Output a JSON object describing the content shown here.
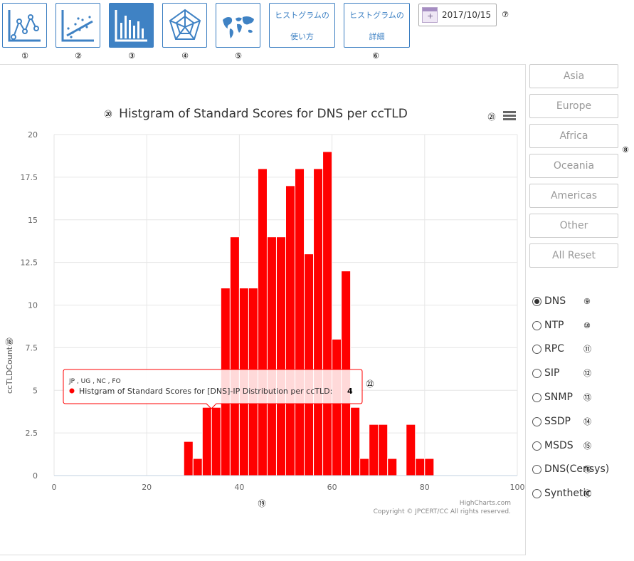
{
  "toolbar": {
    "icons": [
      "line-chart-icon",
      "scatter-chart-icon",
      "histogram-icon",
      "radar-chart-icon",
      "world-map-icon"
    ],
    "active_index": 2,
    "howto_btn": {
      "line1": "ヒストグラムの",
      "line2": "使い方"
    },
    "detail_btn": {
      "line1": "ヒストグラムの",
      "line2": "詳細"
    },
    "date": "2017/10/15",
    "labels": {
      "n1": "①",
      "n2": "②",
      "n3": "③",
      "n4": "④",
      "n5": "⑤",
      "n6": "⑥",
      "n7": "⑦"
    }
  },
  "regions": {
    "buttons": [
      "Asia",
      "Europe",
      "Africa",
      "Oceania",
      "Americas",
      "Other",
      "All Reset"
    ],
    "label": "⑧"
  },
  "protocols": {
    "selected": "DNS",
    "items": [
      {
        "label": "DNS",
        "num": "⑨"
      },
      {
        "label": "NTP",
        "num": "⑩"
      },
      {
        "label": "RPC",
        "num": "⑪"
      },
      {
        "label": "SIP",
        "num": "⑫"
      },
      {
        "label": "SNMP",
        "num": "⑬"
      },
      {
        "label": "SSDP",
        "num": "⑭"
      },
      {
        "label": "MSDS",
        "num": "⑮"
      },
      {
        "label": "DNS(Censys)",
        "num": "⑯"
      },
      {
        "label": "Synthetic",
        "num": "⑰"
      }
    ]
  },
  "chart": {
    "title_num": "⑳",
    "menu_num": "㉑",
    "ylabel_num": "⑱",
    "xlabel_num": "⑲",
    "tooltip_num": "㉒",
    "credits1": "HighCharts.com",
    "credits2": "Copyright © JPCERT/CC All rights reserved.",
    "tooltip": {
      "header": "JP , UG , NC , FO",
      "series": "Histgram of Standard Scores for [DNS]-IP Distribution per ccTLD:",
      "value": "4"
    },
    "bar_color": "#ff0000"
  },
  "chart_data": {
    "type": "bar",
    "title": "Histgram of Standard Scores for DNS per ccTLD",
    "xlabel": "",
    "ylabel": "ccTLDCount",
    "xlim": [
      0,
      100
    ],
    "ylim": [
      0,
      20
    ],
    "x_ticks": [
      0,
      20,
      40,
      60,
      80,
      100
    ],
    "y_ticks": [
      0,
      2.5,
      5,
      7.5,
      10,
      12.5,
      15,
      17.5,
      20
    ],
    "grid": true,
    "x": [
      29,
      31,
      33,
      35,
      37,
      39,
      41,
      43,
      45,
      47,
      49,
      51,
      53,
      55,
      57,
      59,
      61,
      63,
      65,
      67,
      69,
      71,
      73,
      75,
      77,
      79,
      81
    ],
    "values": [
      2,
      1,
      4,
      4,
      11,
      14,
      11,
      11,
      18,
      14,
      14,
      17,
      18,
      13,
      18,
      19,
      8,
      12,
      4,
      1,
      3,
      3,
      1,
      0,
      3,
      1,
      1
    ]
  }
}
